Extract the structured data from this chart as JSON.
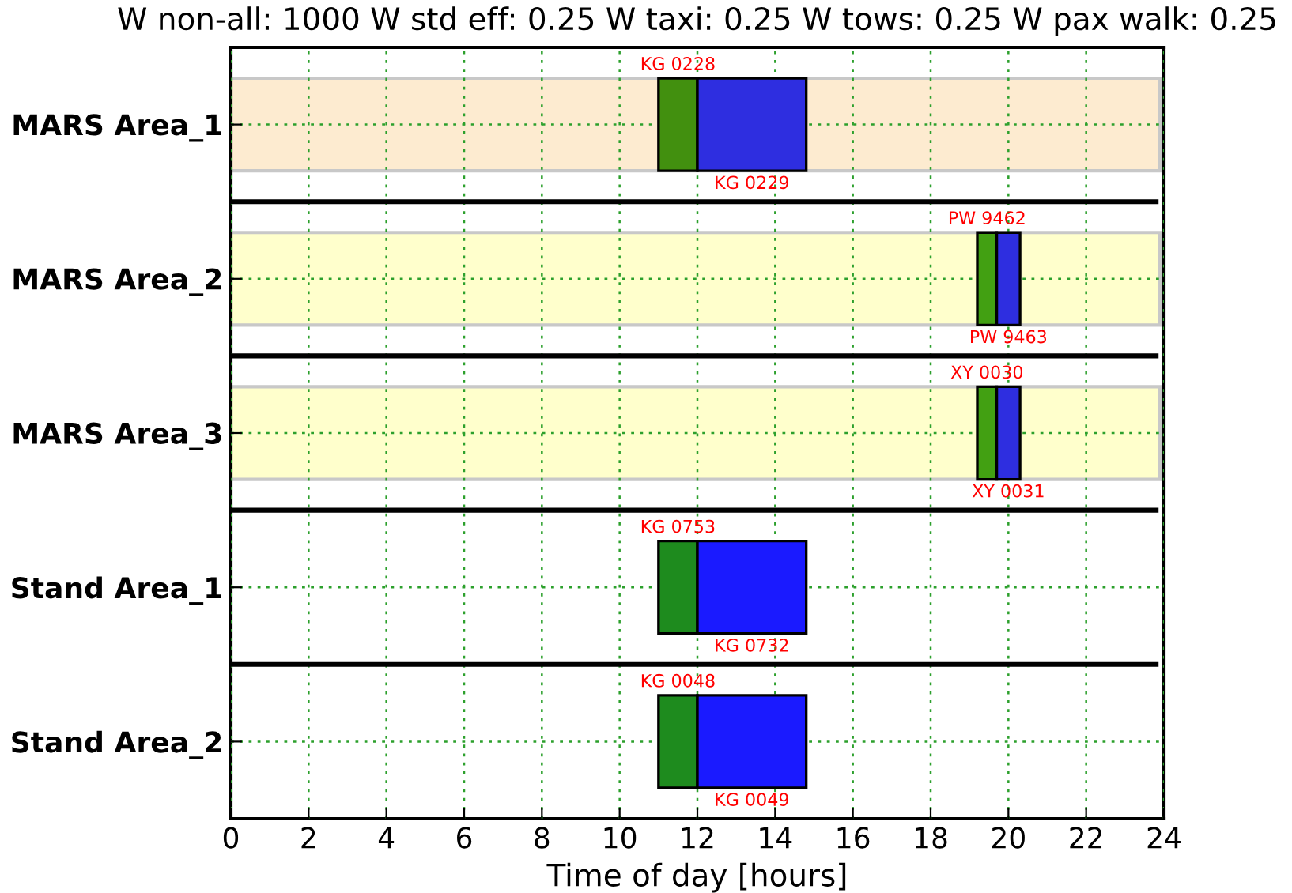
{
  "chart_data": {
    "type": "bar",
    "orientation": "horizontal",
    "title": "W non-all: 1000 W std eff: 0.25 W taxi: 0.25 W tows: 0.25 W pax walk: 0.25",
    "xlabel": "Time of day [hours]",
    "categories": [
      "MARS Area_1",
      "MARS Area_2",
      "MARS Area_3",
      "Stand Area_1",
      "Stand Area_2"
    ],
    "series": [
      {
        "base": [
          0,
          0,
          0,
          null,
          null
        ],
        "values": [
          23.9,
          23.9,
          23.9,
          null,
          null
        ],
        "colors": [
          "#fdebd0",
          "#ffffcc",
          "#ffffcc",
          null,
          null
        ]
      },
      {
        "base": [
          11.0,
          19.2,
          19.2,
          11.0,
          11.0
        ],
        "values": [
          1.0,
          0.5,
          0.5,
          1.0,
          1.0
        ],
        "colors": [
          "#42900f",
          "#42a012",
          "#42a012",
          "#1e8b1e",
          "#1e8b1e"
        ],
        "value_labels": [
          "KG 0228",
          "PW 9462",
          "XY 0030",
          "KG 0753",
          "KG 0048"
        ]
      },
      {
        "base": [
          12.0,
          19.7,
          19.7,
          12.0,
          12.0
        ],
        "values": [
          2.8,
          0.6,
          0.6,
          2.8,
          2.8
        ],
        "colors": [
          "#2e2ee0",
          "#2e2ee0",
          "#2e2ee0",
          "#1a1aff",
          "#1a1aff"
        ],
        "value_labels": [
          "KG 0229",
          "PW 9463",
          "XY 0031",
          "KG 0732",
          "KG 0049"
        ]
      }
    ],
    "xlim": [
      0,
      24
    ],
    "xticks": [
      0,
      2,
      4,
      6,
      8,
      10,
      12,
      14,
      16,
      18,
      20,
      22,
      24
    ],
    "grid": true,
    "legend": false
  }
}
